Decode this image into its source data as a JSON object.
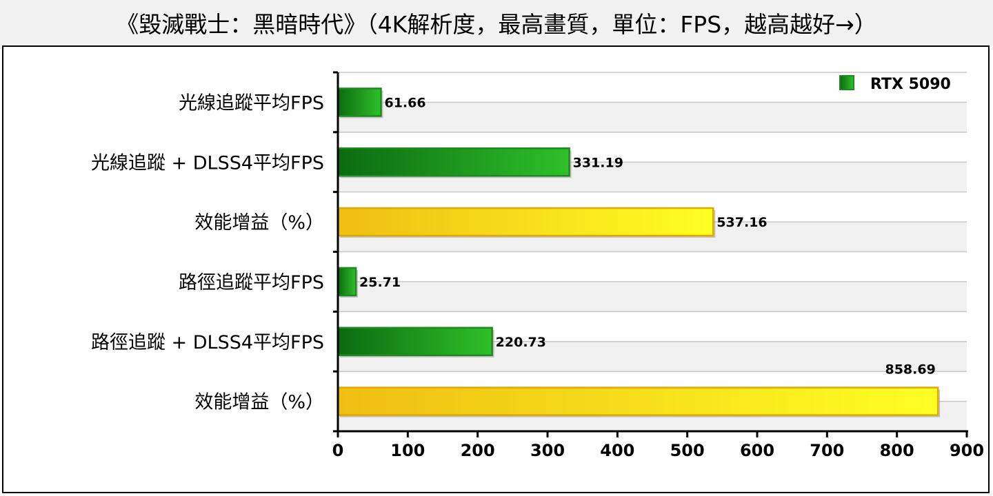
{
  "chart_data": {
    "type": "bar",
    "orientation": "horizontal",
    "title": "《毀滅戰士：黑暗時代》（4K解析度，最高畫質，單位：FPS，越高越好→）",
    "categories": [
      "光線追蹤平均FPS",
      "光線追蹤 + DLSS4平均FPS",
      "效能增益（%）",
      "路徑追蹤平均FPS",
      "路徑追蹤 + DLSS4平均FPS",
      "效能增益（%）"
    ],
    "series": [
      {
        "name": "RTX 5090",
        "values": [
          61.66,
          331.19,
          537.16,
          25.71,
          220.73,
          858.69
        ],
        "value_labels": [
          "61.66",
          "331.19",
          "537.16",
          "25.71",
          "220.73",
          "858.69"
        ]
      }
    ],
    "bar_kinds": [
      "fps",
      "fps",
      "gain",
      "fps",
      "fps",
      "gain"
    ],
    "xlim": [
      0,
      900
    ],
    "xticks": [
      "0",
      "100",
      "200",
      "300",
      "400",
      "500",
      "600",
      "700",
      "800",
      "900"
    ],
    "legend_position": "top-right",
    "grid": true,
    "colors": {
      "fps_dark": "#0b6a10",
      "fps_light": "#2fc02a",
      "fps_edge": "#1f8a1f",
      "gain_dark": "#eebe14",
      "gain_light": "#ffff22",
      "gain_edge": "#e0a800",
      "band": "#f0f0f0",
      "grid": "#c8c8c8"
    }
  }
}
